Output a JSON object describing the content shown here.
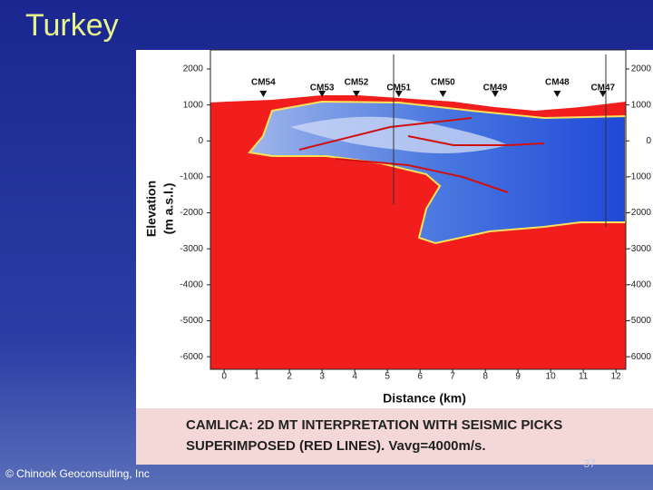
{
  "slide": {
    "title": "Turkey",
    "footer": "© Chinook Geoconsulting, Inc",
    "page_number": "37"
  },
  "figure": {
    "y_axis_label": [
      "Elevation",
      "(m a.s.l.)"
    ],
    "x_axis_label": "Distance (km)",
    "ylim": [
      -6350,
      2530
    ],
    "yticks": [
      2000,
      1000,
      0,
      -1000,
      -2000,
      -3000,
      -4000,
      -5000,
      -6000
    ],
    "xlim": [
      -0.42,
      12.3
    ],
    "xticks": [
      0,
      1,
      2,
      3,
      4,
      5,
      6,
      7,
      8,
      9,
      10,
      11,
      12
    ],
    "stations": {
      "names": [
        "CM54",
        "CM53",
        "CM52",
        "CM51",
        "CM50",
        "CM49",
        "CM48",
        "CM47"
      ],
      "x": [
        1.2,
        3.0,
        4.05,
        5.35,
        6.7,
        8.3,
        10.2,
        11.6
      ]
    },
    "caption": [
      "CAMLICA: 2D MT INTERPRETATION WITH SEISMIC PICKS",
      "SUPERIMPOSED (RED LINES).  Vavg=4000m/s."
    ]
  }
}
